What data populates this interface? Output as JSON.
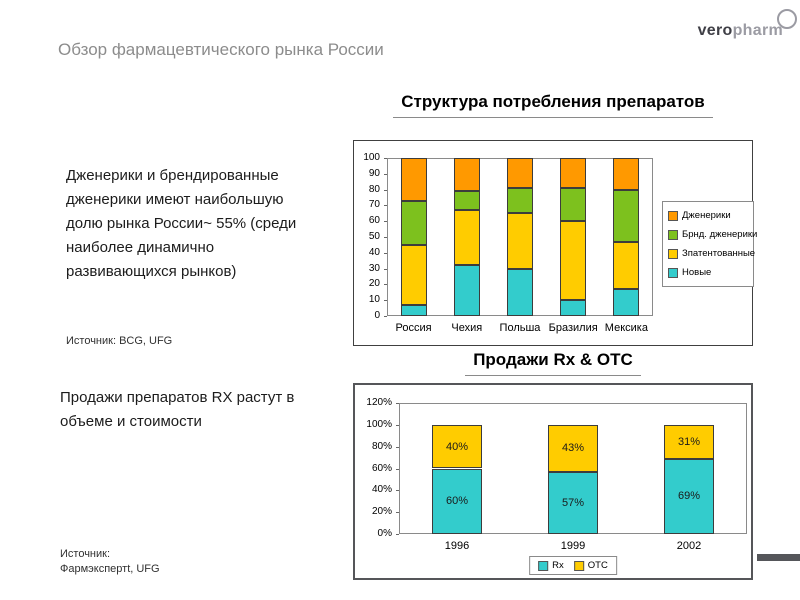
{
  "page": {
    "title": "Обзор фармацевтического рынка России",
    "logo": {
      "bold": "vero",
      "light": "pharm"
    }
  },
  "notes": {
    "note1": "Дженерики и брендированные дженерики имеют наибольшую долю рынка России~ 55% (среди наиболее динамично развивающихся рынков)",
    "source1": "Источник: BCG, UFG",
    "note2": "Продажи препаратов RX  растут в объеме и стоимости",
    "source2_line1": "Источник:",
    "source2_line2": "Фармэкспертt, UFG"
  },
  "colors": {
    "new_drugs": "#33CCCC",
    "patented": "#FFCC00",
    "branded_generics": "#7DC11E",
    "generics": "#FF9900",
    "decor_bar": "#55565A",
    "title_gray": "#8C8C8C"
  },
  "chart_data": [
    {
      "type": "bar",
      "stacked": true,
      "title": "Структура потребления препаратов",
      "categories": [
        "Россия",
        "Чехия",
        "Польша",
        "Бразилия",
        "Мексика"
      ],
      "series": [
        {
          "name": "Новые",
          "color": "#33CCCC",
          "values": [
            7,
            32,
            30,
            10,
            17
          ]
        },
        {
          "name": "Зпатентованные",
          "color": "#FFCC00",
          "values": [
            38,
            35,
            35,
            50,
            30
          ]
        },
        {
          "name": "Брнд. дженерики",
          "color": "#7DC11E",
          "values": [
            28,
            12,
            16,
            21,
            33
          ]
        },
        {
          "name": "Дженерики",
          "color": "#FF9900",
          "values": [
            27,
            21,
            19,
            19,
            20
          ]
        }
      ],
      "ylim": [
        0,
        100
      ],
      "ytick_step": 10,
      "ytick_suffix": "",
      "grid": false,
      "legend_position": "right",
      "legend_reverse": true,
      "show_labels": false
    },
    {
      "type": "bar",
      "stacked": true,
      "title": "Продажи Rx & OTC",
      "categories": [
        "1996",
        "1999",
        "2002"
      ],
      "series": [
        {
          "name": "Rx",
          "color": "#33CCCC",
          "values": [
            60,
            57,
            69
          ],
          "labels": [
            "60%",
            "57%",
            "69%"
          ]
        },
        {
          "name": "OTC",
          "color": "#FFCC00",
          "values": [
            40,
            43,
            31
          ],
          "labels": [
            "40%",
            "43%",
            "31%"
          ]
        }
      ],
      "ylim": [
        0,
        120
      ],
      "ytick_step": 20,
      "ytick_suffix": "%",
      "grid": false,
      "legend_position": "bottom",
      "legend_reverse": false,
      "show_labels": true
    }
  ]
}
